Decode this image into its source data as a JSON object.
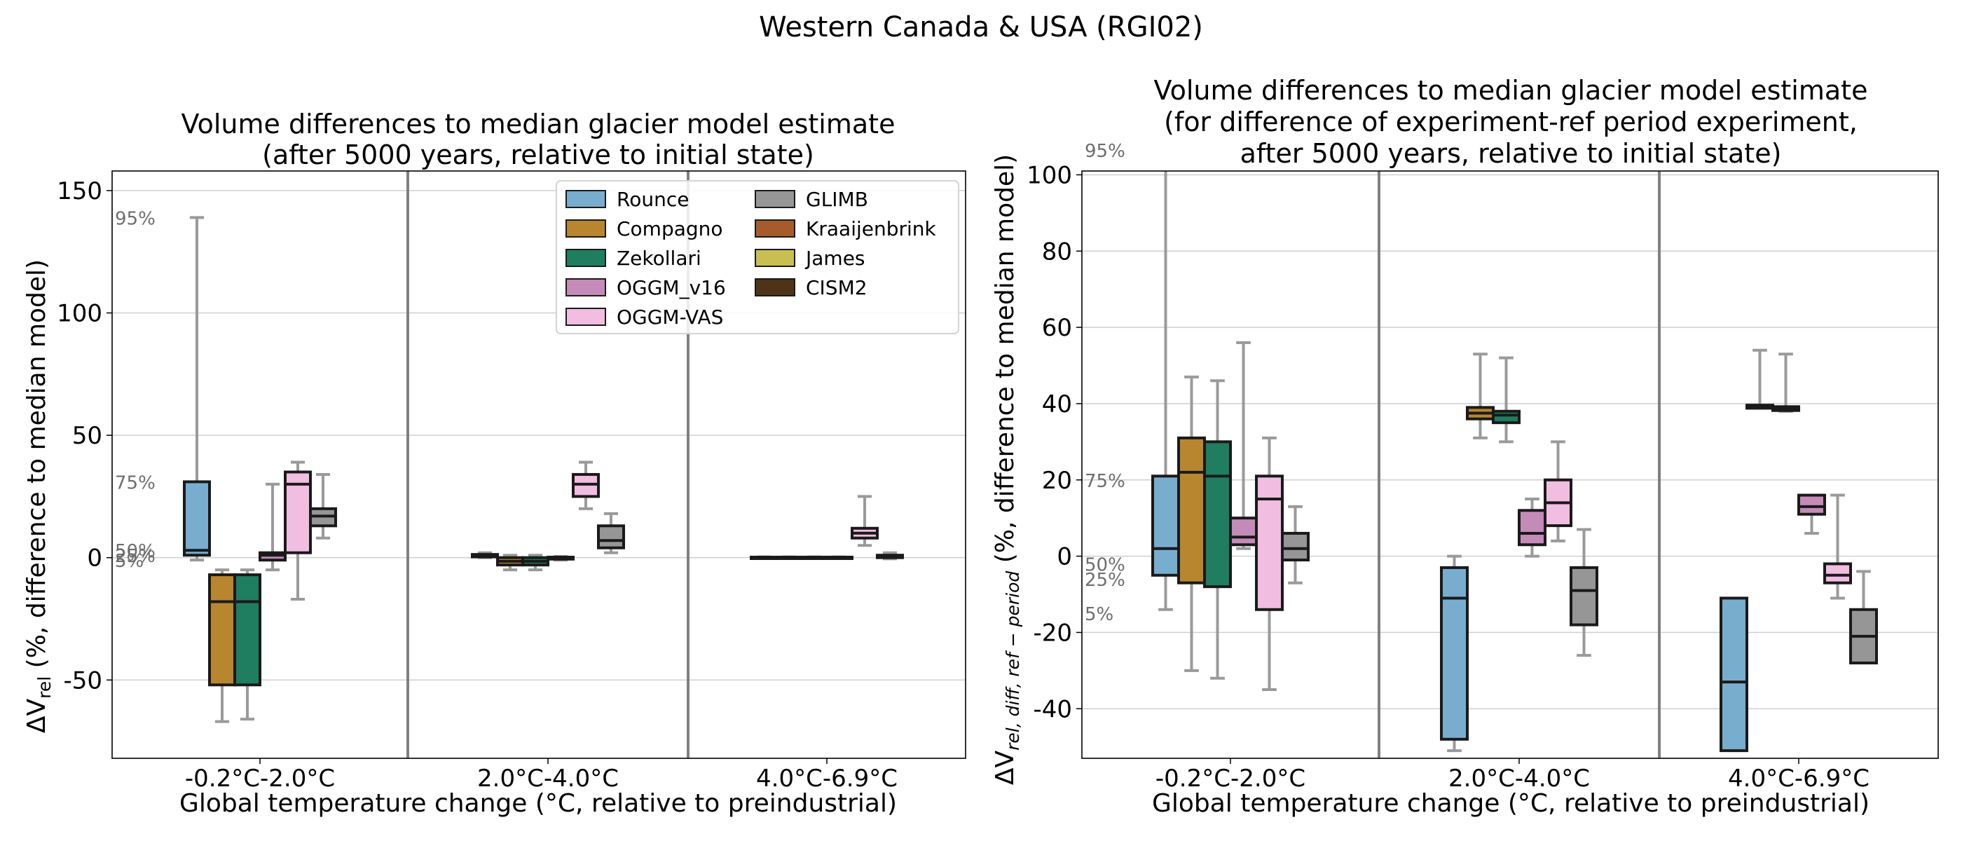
{
  "figure_title": "Western Canada & USA (RGI02)",
  "colors": {
    "Rounce": "#78adce",
    "Compagno": "#b8862e",
    "Zekollari": "#1f7d60",
    "OGGM_v16": "#c48bb8",
    "OGGM-VAS": "#f1bde0",
    "GLIMB": "#969696",
    "Kraaijenbrink": "#a65c2a",
    "James": "#c9be50",
    "CISM2": "#4d3416",
    "whisker": "#9a9a9a",
    "outline": "#1a1a1a"
  },
  "legend": {
    "col1": [
      "Rounce",
      "Compagno",
      "Zekollari",
      "OGGM_v16",
      "OGGM-VAS"
    ],
    "col2": [
      "GLIMB",
      "Kraaijenbrink",
      "James",
      "CISM2"
    ]
  },
  "chart_data": [
    {
      "type": "box",
      "title": "Volume differences to median glacier model estimate",
      "subtitle": "(after 5000 years, relative to initial state)",
      "xlabel": "Global temperature change (°C, relative to preindustrial)",
      "ylabel_main": "ΔV",
      "ylabel_sub": "rel",
      "ylabel_rest": " (%, difference to median model)",
      "ylim": [
        -82,
        158
      ],
      "yticks": [
        -50,
        0,
        50,
        100,
        150
      ],
      "categories": [
        "-0.2°C-2.0°C",
        "2.0°C-4.0°C",
        "4.0°C-6.9°C"
      ],
      "annotations": [
        {
          "text": "95%",
          "y": 139
        },
        {
          "text": "75%",
          "y": 31
        },
        {
          "text": "50%",
          "y": 3
        },
        {
          "text": "25%",
          "y": 1
        },
        {
          "text": "5%",
          "y": -1
        }
      ],
      "boxes": [
        {
          "model": "Rounce",
          "group": 0,
          "slot": 0,
          "p5": -1,
          "q1": 1,
          "med": 3,
          "q3": 31,
          "p95": 139
        },
        {
          "model": "Compagno",
          "group": 0,
          "slot": 1,
          "p5": -67,
          "q1": -52,
          "med": -18,
          "q3": -7,
          "p95": -5
        },
        {
          "model": "Zekollari",
          "group": 0,
          "slot": 2,
          "p5": -66,
          "q1": -52,
          "med": -18,
          "q3": -7,
          "p95": -5
        },
        {
          "model": "OGGM_v16",
          "group": 0,
          "slot": 3,
          "p5": -5,
          "q1": -1,
          "med": 1,
          "q3": 2,
          "p95": 30
        },
        {
          "model": "OGGM-VAS",
          "group": 0,
          "slot": 4,
          "p5": -17,
          "q1": 2,
          "med": 30,
          "q3": 35,
          "p95": 39
        },
        {
          "model": "GLIMB",
          "group": 0,
          "slot": 5,
          "p5": 8,
          "q1": 13,
          "med": 17,
          "q3": 20,
          "p95": 34
        },
        {
          "model": "Rounce",
          "group": 1,
          "slot": 0,
          "p5": 0,
          "q1": 0.3,
          "med": 0.8,
          "q3": 1.3,
          "p95": 2
        },
        {
          "model": "Compagno",
          "group": 1,
          "slot": 1,
          "p5": -5,
          "q1": -3,
          "med": -1.5,
          "q3": 0,
          "p95": 1
        },
        {
          "model": "Zekollari",
          "group": 1,
          "slot": 2,
          "p5": -5,
          "q1": -3,
          "med": -1.5,
          "q3": 0,
          "p95": 1
        },
        {
          "model": "OGGM_v16",
          "group": 1,
          "slot": 3,
          "p5": -1,
          "q1": -0.6,
          "med": -0.2,
          "q3": 0.2,
          "p95": 0.5
        },
        {
          "model": "OGGM-VAS",
          "group": 1,
          "slot": 4,
          "p5": 20,
          "q1": 25,
          "med": 30,
          "q3": 34,
          "p95": 39
        },
        {
          "model": "GLIMB",
          "group": 1,
          "slot": 5,
          "p5": 2,
          "q1": 4,
          "med": 7,
          "q3": 13,
          "p95": 18
        },
        {
          "model": "Rounce",
          "group": 2,
          "slot": 0,
          "p5": -0.3,
          "q1": -0.2,
          "med": 0,
          "q3": 0.2,
          "p95": 0.3
        },
        {
          "model": "Compagno",
          "group": 2,
          "slot": 1,
          "p5": -0.3,
          "q1": -0.2,
          "med": 0,
          "q3": 0.2,
          "p95": 0.3
        },
        {
          "model": "Zekollari",
          "group": 2,
          "slot": 2,
          "p5": -0.3,
          "q1": -0.2,
          "med": 0,
          "q3": 0.2,
          "p95": 0.3
        },
        {
          "model": "OGGM_v16",
          "group": 2,
          "slot": 3,
          "p5": -0.3,
          "q1": -0.2,
          "med": 0,
          "q3": 0.2,
          "p95": 0.3
        },
        {
          "model": "OGGM-VAS",
          "group": 2,
          "slot": 4,
          "p5": 5,
          "q1": 8,
          "med": 10,
          "q3": 12,
          "p95": 25
        },
        {
          "model": "GLIMB",
          "group": 2,
          "slot": 5,
          "p5": -0.5,
          "q1": 0,
          "med": 0.5,
          "q3": 1,
          "p95": 2
        }
      ]
    },
    {
      "type": "box",
      "title": "Volume differences to median glacier model estimate",
      "subtitle": "(for difference of experiment-ref period experiment,",
      "subtitle2": "after 5000 years, relative to initial state)",
      "xlabel": "Global temperature change (°C, relative to preindustrial)",
      "ylabel_main": "ΔV",
      "ylabel_sub": "rel, diff, ref − period",
      "ylabel_rest": " (%, difference to median model)",
      "ylim": [
        -53,
        101
      ],
      "yticks": [
        -40,
        -20,
        0,
        20,
        40,
        60,
        80,
        100
      ],
      "categories": [
        "-0.2°C-2.0°C",
        "2.0°C-4.0°C",
        "4.0°C-6.9°C"
      ],
      "annotations": [
        {
          "text": "95%",
          "y": 107
        },
        {
          "text": "75%",
          "y": 20
        },
        {
          "text": "50%",
          "y": -2
        },
        {
          "text": "25%",
          "y": -6
        },
        {
          "text": "5%",
          "y": -15
        }
      ],
      "boxes": [
        {
          "model": "Rounce",
          "group": 0,
          "slot": 0,
          "p5": -14,
          "q1": -5,
          "med": 2,
          "q3": 21,
          "p95": 107
        },
        {
          "model": "Compagno",
          "group": 0,
          "slot": 1,
          "p5": -30,
          "q1": -7,
          "med": 22,
          "q3": 31,
          "p95": 47
        },
        {
          "model": "Zekollari",
          "group": 0,
          "slot": 2,
          "p5": -32,
          "q1": -8,
          "med": 21,
          "q3": 30,
          "p95": 46
        },
        {
          "model": "OGGM_v16",
          "group": 0,
          "slot": 3,
          "p5": 2,
          "q1": 3,
          "med": 5,
          "q3": 10,
          "p95": 56
        },
        {
          "model": "OGGM-VAS",
          "group": 0,
          "slot": 4,
          "p5": -35,
          "q1": -14,
          "med": 15,
          "q3": 21,
          "p95": 31
        },
        {
          "model": "GLIMB",
          "group": 0,
          "slot": 5,
          "p5": -7,
          "q1": -1,
          "med": 2,
          "q3": 6,
          "p95": 13
        },
        {
          "model": "Rounce",
          "group": 1,
          "slot": 0,
          "p5": -51,
          "q1": -48,
          "med": -11,
          "q3": -3,
          "p95": 0
        },
        {
          "model": "Compagno",
          "group": 1,
          "slot": 1,
          "p5": 31,
          "q1": 36,
          "med": 37.5,
          "q3": 39,
          "p95": 53
        },
        {
          "model": "Zekollari",
          "group": 1,
          "slot": 2,
          "p5": 30,
          "q1": 35,
          "med": 37,
          "q3": 38,
          "p95": 52
        },
        {
          "model": "OGGM_v16",
          "group": 1,
          "slot": 3,
          "p5": 0,
          "q1": 3,
          "med": 6,
          "q3": 12,
          "p95": 15
        },
        {
          "model": "OGGM-VAS",
          "group": 1,
          "slot": 4,
          "p5": 4,
          "q1": 8,
          "med": 14,
          "q3": 20,
          "p95": 30
        },
        {
          "model": "GLIMB",
          "group": 1,
          "slot": 5,
          "p5": -26,
          "q1": -18,
          "med": -9,
          "q3": -3,
          "p95": 7
        },
        {
          "model": "Rounce",
          "group": 2,
          "slot": 0,
          "p5": -51,
          "q1": -51,
          "med": -33,
          "q3": -11,
          "p95": -11
        },
        {
          "model": "Compagno",
          "group": 2,
          "slot": 1,
          "p5": 39,
          "q1": 38.8,
          "med": 39.2,
          "q3": 39.6,
          "p95": 54
        },
        {
          "model": "Zekollari",
          "group": 2,
          "slot": 2,
          "p5": 38,
          "q1": 38.2,
          "med": 38.7,
          "q3": 39.2,
          "p95": 53
        },
        {
          "model": "OGGM_v16",
          "group": 2,
          "slot": 3,
          "p5": 6,
          "q1": 11,
          "med": 13,
          "q3": 16,
          "p95": 16
        },
        {
          "model": "OGGM-VAS",
          "group": 2,
          "slot": 4,
          "p5": -11,
          "q1": -7,
          "med": -5,
          "q3": -2,
          "p95": 16
        },
        {
          "model": "GLIMB",
          "group": 2,
          "slot": 5,
          "p5": -28,
          "q1": -28,
          "med": -21,
          "q3": -14,
          "p95": -4
        }
      ]
    }
  ]
}
